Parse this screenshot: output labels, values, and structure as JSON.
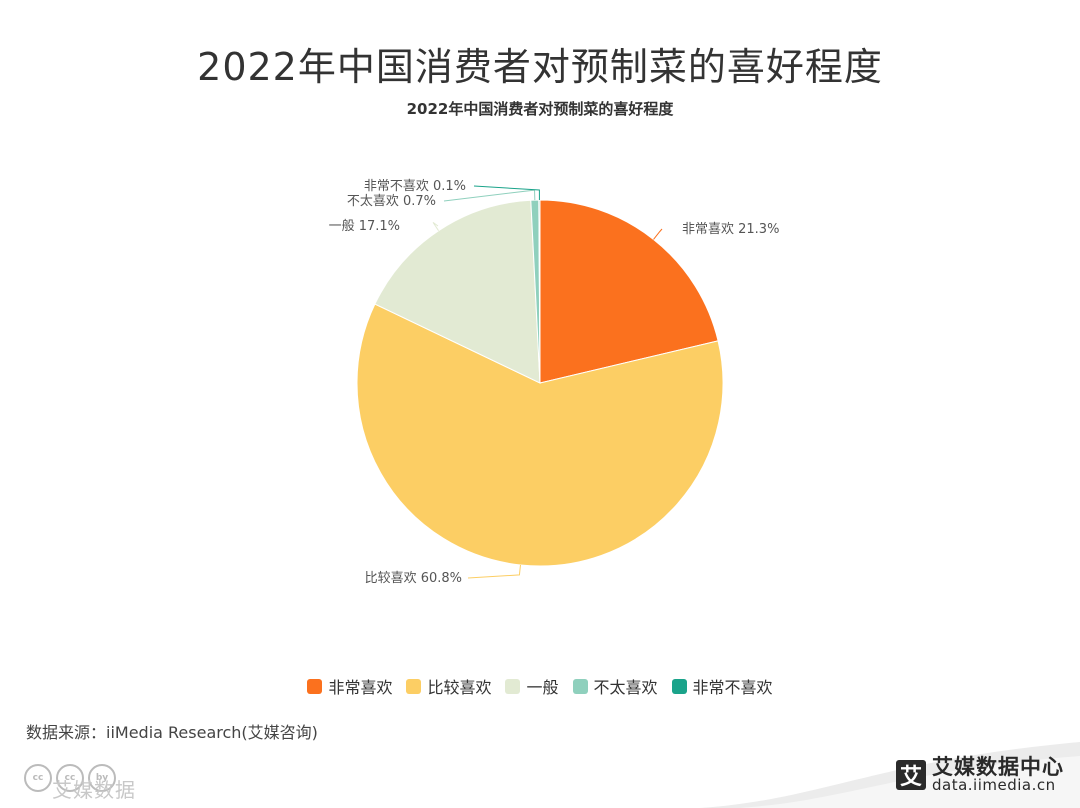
{
  "header": {
    "title": "2022年中国消费者对预制菜的喜好程度"
  },
  "chart_data": {
    "type": "pie",
    "title": "2022年中国消费者对预制菜的喜好程度",
    "slices": [
      {
        "name": "非常喜欢",
        "value": 21.3,
        "label": "非常喜欢 21.3%",
        "color": "#FB711E"
      },
      {
        "name": "比较喜欢",
        "value": 60.8,
        "label": "比较喜欢 60.8%",
        "color": "#FCCE64"
      },
      {
        "name": "一般",
        "value": 17.1,
        "label": "一般 17.1%",
        "color": "#E2EAD3"
      },
      {
        "name": "不太喜欢",
        "value": 0.7,
        "label": "不太喜欢 0.7%",
        "color": "#8FD0BD"
      },
      {
        "name": "非常不喜欢",
        "value": 0.1,
        "label": "非常不喜欢 0.1%",
        "color": "#1AA38A"
      }
    ],
    "legend": [
      "非常喜欢",
      "比较喜欢",
      "一般",
      "不太喜欢",
      "非常不喜欢"
    ],
    "legend_position": "bottom-center"
  },
  "footer": {
    "source": "数据来源：iiMedia Research(艾媒咨询)",
    "watermark": "艾媒数据",
    "cc_badges": [
      "cc",
      "cc",
      "by"
    ],
    "brand_name": "艾媒数据中心",
    "brand_url": "data.iimedia.cn",
    "brand_logo_char": "艾"
  }
}
